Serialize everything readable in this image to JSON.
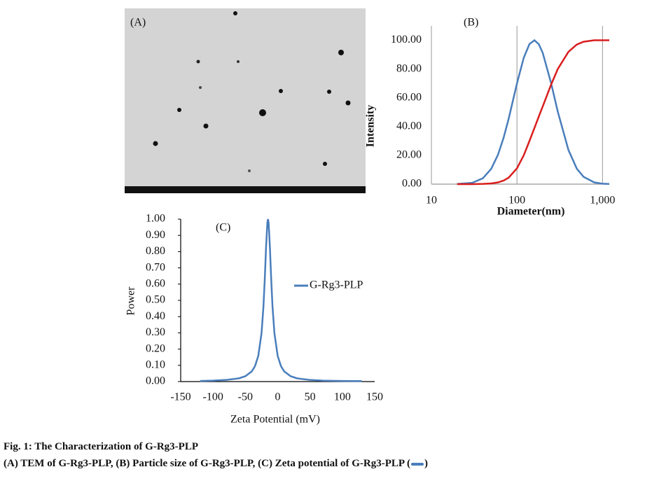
{
  "panel_a": {
    "label": "(A)"
  },
  "chart_data": [
    {
      "type": "line",
      "title": "(B)",
      "xlabel": "Diameter(nm)",
      "ylabel": "Intensity",
      "xlog": true,
      "xgrid": true,
      "x": [
        20,
        30,
        40,
        50,
        60,
        70,
        80,
        100,
        120,
        140,
        160,
        180,
        200,
        250,
        300,
        400,
        500,
        600,
        800,
        1000,
        1200
      ],
      "xlim": [
        10,
        1200
      ],
      "xticks": [
        10,
        100,
        {
          "value": 1000,
          "label": "1,000"
        }
      ],
      "ylim": [
        0,
        110
      ],
      "yticks": [
        {
          "value": 0,
          "label": "0.00"
        },
        {
          "value": 20,
          "label": "20.00"
        },
        {
          "value": 40,
          "label": "40.00"
        },
        {
          "value": 60,
          "label": "60.00"
        },
        {
          "value": 80,
          "label": "80.00"
        },
        {
          "value": 100,
          "label": "100.00"
        }
      ],
      "series": [
        {
          "color": "#4a7ebb",
          "values": [
            0.1,
            0.9,
            4.1,
            10.6,
            20.4,
            32.5,
            45.4,
            70,
            87.8,
            97.4,
            100,
            97.3,
            91.3,
            70.5,
            50.4,
            23.7,
            10.8,
            5.1,
            1.2,
            0.3,
            0.1
          ]
        },
        {
          "color": "#d91e1e",
          "values": [
            0,
            0,
            0.2,
            0.5,
            1.2,
            2.5,
            4.5,
            11,
            20,
            30,
            39,
            47,
            54,
            69,
            80,
            92,
            97,
            99,
            100,
            100,
            100
          ]
        }
      ]
    },
    {
      "type": "line",
      "title": "(C)",
      "xlabel": "Zeta Potential (mV)",
      "ylabel": "Power",
      "legend": "right",
      "x": [
        -120,
        -100,
        -80,
        -60,
        -50,
        -40,
        -35,
        -30,
        -25,
        -22,
        -20,
        -18,
        -16,
        -15,
        -14,
        -12,
        -10,
        -8,
        -5,
        0,
        5,
        10,
        20,
        30,
        50,
        70,
        100,
        130
      ],
      "xlim": [
        -150,
        150
      ],
      "xticks": [
        -150,
        -100,
        -50,
        0,
        50,
        100,
        150
      ],
      "ylim": [
        0,
        1
      ],
      "yticks": [
        {
          "value": 0,
          "label": "0.00"
        },
        {
          "value": 0.1,
          "label": "0.10"
        },
        {
          "value": 0.2,
          "label": "0.20"
        },
        {
          "value": 0.3,
          "label": "0.30"
        },
        {
          "value": 0.4,
          "label": "0.40"
        },
        {
          "value": 0.5,
          "label": "0.50"
        },
        {
          "value": 0.6,
          "label": "0.60"
        },
        {
          "value": 0.7,
          "label": "0.70"
        },
        {
          "value": 0.8,
          "label": "0.80"
        },
        {
          "value": 0.9,
          "label": "0.90"
        },
        {
          "value": 1,
          "label": "1.00"
        }
      ],
      "series": [
        {
          "name": "G-Rg3-PLP",
          "color": "#4a7ebb",
          "values": [
            0.004,
            0.006,
            0.01,
            0.02,
            0.033,
            0.063,
            0.096,
            0.158,
            0.297,
            0.463,
            0.628,
            0.824,
            0.977,
            1,
            0.977,
            0.824,
            0.628,
            0.463,
            0.297,
            0.158,
            0.096,
            0.063,
            0.033,
            0.02,
            0.01,
            0.006,
            0.004,
            0.003
          ]
        }
      ]
    }
  ],
  "caption": {
    "title": "Fig. 1: The Characterization of G-Rg3-PLP",
    "text": "(A) TEM of G-Rg3-PLP, (B) Particle size of G-Rg3-PLP, (C) Zeta potential of G-Rg3-PLP (",
    "close": ")"
  }
}
